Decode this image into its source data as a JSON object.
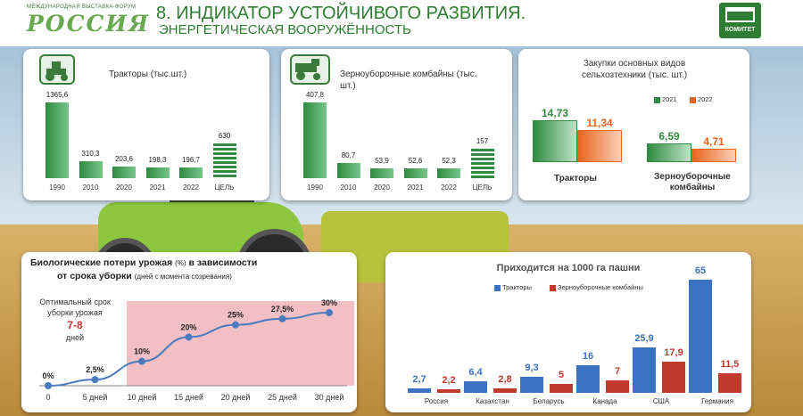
{
  "header": {
    "logo_sub": "МЕЖДУНАРОДНАЯ ВЫСТАВКА-ФОРУМ",
    "logo": "РОССИЯ",
    "title": "8. ИНДИКАТОР УСТОЙЧИВОГО РАЗВИТИЯ.",
    "subtitle": "ЭНЕРГЕТИЧЕСКАЯ ВООРУЖЁННОСТЬ",
    "committee": "КОМИТЕТ"
  },
  "colors": {
    "green": "#2e8b3f",
    "orange": "#e8641e",
    "blue": "#3a72c4",
    "red": "#c0392b",
    "pink_band": "#f2c0c4"
  },
  "chart_data": [
    {
      "type": "bar",
      "title": "Тракторы (тыс.шт.)",
      "icon": "tractor-icon",
      "categories": [
        "1990",
        "2010",
        "2020",
        "2021",
        "2022",
        "ЦЕЛЬ"
      ],
      "values": [
        1365.6,
        310.3,
        203.6,
        198.3,
        196.7,
        630
      ],
      "labels": [
        "1365,6",
        "310,3",
        "203,6",
        "198,3",
        "196,7",
        "630"
      ]
    },
    {
      "type": "bar",
      "title": "Зерноуборочные комбайны (тыс. шт.)",
      "icon": "combine-icon",
      "categories": [
        "1990",
        "2010",
        "2020",
        "2021",
        "2022",
        "ЦЕЛЬ"
      ],
      "values": [
        407.8,
        80.7,
        53.9,
        52.6,
        52.3,
        157
      ],
      "labels": [
        "407,8",
        "80,7",
        "53,9",
        "52,6",
        "52,3",
        "157"
      ]
    },
    {
      "type": "bar",
      "title": "Закупки основных видов сельхозтехники (тыс. шт.)",
      "categories": [
        "Тракторы",
        "Зерноуборочные комбайны"
      ],
      "series": [
        {
          "name": "2021",
          "values": [
            14.73,
            6.59
          ],
          "labels": [
            "14,73",
            "6,59"
          ]
        },
        {
          "name": "2022",
          "values": [
            11.34,
            4.71
          ],
          "labels": [
            "11,34",
            "4,71"
          ]
        }
      ]
    },
    {
      "type": "line",
      "title": "Биологические потери урожая",
      "title_unit": "(%)",
      "title_rest": "в зависимости",
      "title2": "от срока уборки",
      "title2_note": "(дней с момента созревания)",
      "x": [
        "0",
        "5 дней",
        "10 дней",
        "15 дней",
        "20 дней",
        "25 дней",
        "30 дней"
      ],
      "values": [
        0,
        2.5,
        10,
        20,
        25,
        27.5,
        30
      ],
      "labels": [
        "0%",
        "2,5%",
        "10%",
        "20%",
        "25%",
        "27,5%",
        "30%"
      ],
      "annotation": {
        "line1": "Оптимальный срок",
        "line2": "уборки урожая",
        "range": "7-8",
        "unit": "дней"
      },
      "ylim": [
        0,
        30
      ]
    },
    {
      "type": "bar",
      "title": "Приходится на 1000 га пашни",
      "categories": [
        "Россия",
        "Казахстан",
        "Беларусь",
        "Канада",
        "США",
        "Германия"
      ],
      "series": [
        {
          "name": "Тракторы",
          "values": [
            2.7,
            6.4,
            9.3,
            16,
            25.9,
            65
          ],
          "labels": [
            "2,7",
            "6,4",
            "9,3",
            "16",
            "25,9",
            "65"
          ]
        },
        {
          "name": "Зерноуборочные комбайны",
          "values": [
            2.2,
            2.8,
            5,
            7,
            17.9,
            11.5
          ],
          "labels": [
            "2,2",
            "2,8",
            "5",
            "7",
            "17,9",
            "11,5"
          ]
        }
      ],
      "ylim": [
        0,
        65
      ]
    }
  ]
}
